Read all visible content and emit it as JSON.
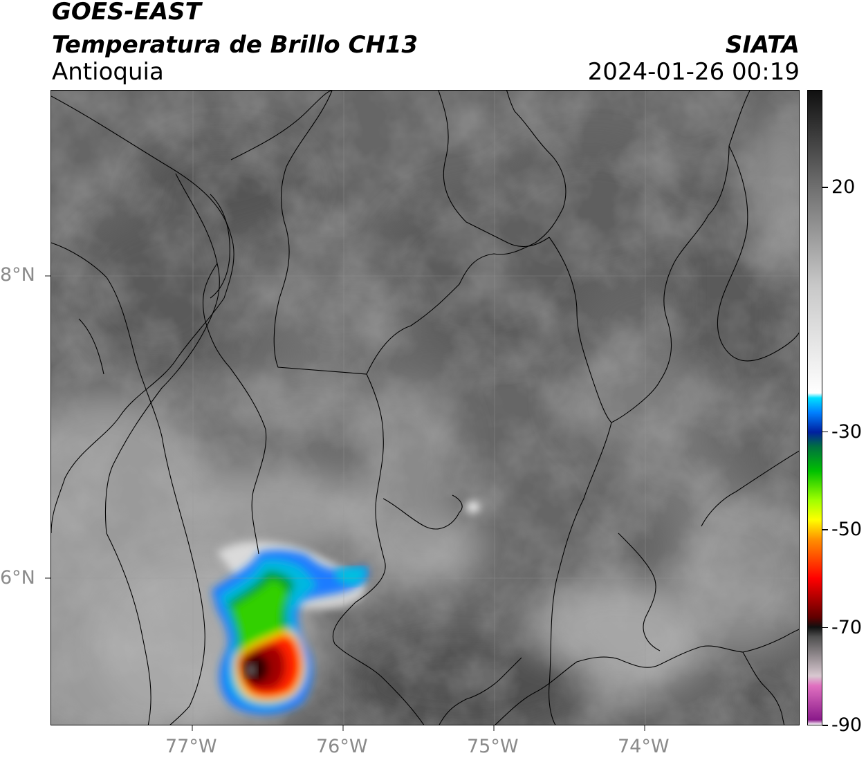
{
  "header": {
    "satellite": "GOES-EAST",
    "product": "Temperatura de Brillo CH13",
    "region": "Antioquia",
    "source": "SIATA",
    "datetime": "2024-01-26 00:19"
  },
  "map": {
    "lon_range": [
      -77.95,
      -72.98
    ],
    "lat_range": [
      4.95,
      9.15
    ],
    "lat_ticks": [
      {
        "value": 8,
        "label": "8°N"
      },
      {
        "value": 6,
        "label": "6°N"
      }
    ],
    "lon_ticks": [
      {
        "value": -77,
        "label": "77°W"
      },
      {
        "value": -76,
        "label": "76°W"
      },
      {
        "value": -75,
        "label": "75°W"
      },
      {
        "value": -74,
        "label": "74°W"
      }
    ],
    "storm_center": {
      "lon": -76.55,
      "lat": 5.35
    },
    "colors": {
      "background_gray": "#6a6a6a",
      "border": "#000000",
      "tick_label": "#8a8a8a"
    }
  },
  "colorbar": {
    "range": [
      -90,
      40
    ],
    "ticks": [
      {
        "value": 20,
        "label": "20"
      },
      {
        "value": -30,
        "label": "-30"
      },
      {
        "value": -50,
        "label": "-50"
      },
      {
        "value": -70,
        "label": "-70"
      },
      {
        "value": -90,
        "label": "-90"
      }
    ],
    "stops": [
      {
        "value": -90,
        "color": "#ffffff"
      },
      {
        "value": -89,
        "color": "#8a1a8a"
      },
      {
        "value": -82,
        "color": "#e070c0"
      },
      {
        "value": -80,
        "color": "#d8c8d0"
      },
      {
        "value": -72,
        "color": "#505050"
      },
      {
        "value": -70,
        "color": "#101010"
      },
      {
        "value": -68,
        "color": "#600000"
      },
      {
        "value": -60,
        "color": "#ff0000"
      },
      {
        "value": -52,
        "color": "#ff9000"
      },
      {
        "value": -48,
        "color": "#ffff00"
      },
      {
        "value": -44,
        "color": "#a0ff00"
      },
      {
        "value": -38,
        "color": "#00c000"
      },
      {
        "value": -33,
        "color": "#007040"
      },
      {
        "value": -30,
        "color": "#0020a0"
      },
      {
        "value": -26,
        "color": "#0080ff"
      },
      {
        "value": -23,
        "color": "#00e0ff"
      },
      {
        "value": -22,
        "color": "#ffffff"
      },
      {
        "value": 0,
        "color": "#c8c8c8"
      },
      {
        "value": 20,
        "color": "#707070"
      },
      {
        "value": 40,
        "color": "#101010"
      }
    ]
  }
}
